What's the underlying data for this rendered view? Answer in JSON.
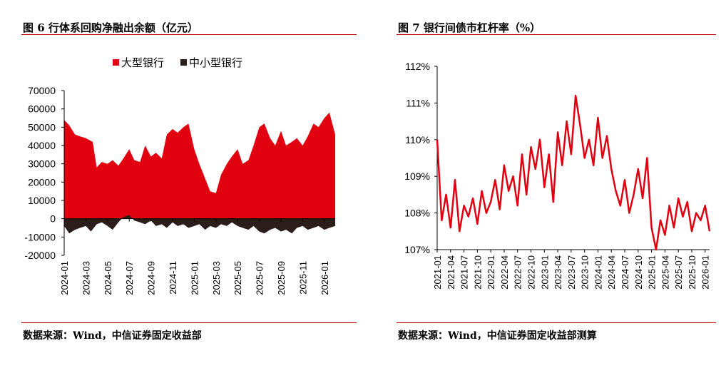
{
  "left_panel": {
    "title": "图 6 行体系回购净融出余额（亿元）",
    "source": "数据来源：Wind，中信证券固定收益部"
  },
  "right_panel": {
    "title": "图 7 银行间债市杠杆率（%）",
    "source": "数据来源：Wind，中信证券固定收益部测算"
  },
  "colors": {
    "accent": "#c00000",
    "red": "#e0000f",
    "dark": "#2b1d1a",
    "line": "#e0000f"
  },
  "chart_data": [
    {
      "type": "area",
      "title": "",
      "ylim": [
        -20000,
        70000
      ],
      "yticks": [
        70000,
        60000,
        50000,
        40000,
        30000,
        20000,
        10000,
        0,
        -10000,
        -20000
      ],
      "x_ticks": [
        "2024-01",
        "2024-03",
        "2024-05",
        "2024-07",
        "2024-09",
        "2024-11",
        "2025-01",
        "2025-03",
        "2025-05",
        "2025-07",
        "2025-09",
        "2025-11",
        "2026-01"
      ],
      "x_start": "2024-01",
      "x_end": "2026-02",
      "legend_position": "top-left",
      "series": [
        {
          "name": "大型银行",
          "color": "#e0000f",
          "x": [
            "2024-01",
            "2024-01-15",
            "2024-02",
            "2024-02-15",
            "2024-03",
            "2024-03-10",
            "2024-03-20",
            "2024-04",
            "2024-04-15",
            "2024-05",
            "2024-05-15",
            "2024-06",
            "2024-06-15",
            "2024-07",
            "2024-07-15",
            "2024-08",
            "2024-08-15",
            "2024-09",
            "2024-09-15",
            "2024-10",
            "2024-10-15",
            "2024-11",
            "2024-11-15",
            "2024-12",
            "2024-12-15",
            "2025-01",
            "2025-01-15",
            "2025-02",
            "2025-02-15",
            "2025-03",
            "2025-03-15",
            "2025-04",
            "2025-04-15",
            "2025-05",
            "2025-05-15",
            "2025-06",
            "2025-06-15",
            "2025-07",
            "2025-07-15",
            "2025-08",
            "2025-08-15",
            "2025-09",
            "2025-09-15",
            "2025-10",
            "2025-10-15",
            "2025-11",
            "2025-11-15",
            "2025-12",
            "2025-12-15",
            "2026-01",
            "2026-01-15",
            "2026-02"
          ],
          "values": [
            54000,
            51000,
            46000,
            45000,
            44000,
            43000,
            42000,
            28000,
            31000,
            30000,
            32000,
            29000,
            33000,
            38000,
            32000,
            31000,
            40000,
            34000,
            36000,
            33000,
            46000,
            49000,
            47000,
            50000,
            52000,
            38000,
            30000,
            22000,
            15000,
            14000,
            24000,
            30000,
            34000,
            38000,
            30000,
            32000,
            40000,
            50000,
            52000,
            44000,
            40000,
            48000,
            40000,
            42000,
            44000,
            40000,
            45000,
            52000,
            50000,
            55000,
            58000,
            46000
          ]
        },
        {
          "name": "中小型银行",
          "color": "#2b1d1a",
          "x": [
            "2024-01",
            "2024-01-15",
            "2024-02",
            "2024-02-15",
            "2024-03",
            "2024-03-15",
            "2024-04",
            "2024-04-15",
            "2024-05",
            "2024-05-15",
            "2024-06",
            "2024-06-15",
            "2024-07",
            "2024-07-15",
            "2024-08",
            "2024-08-15",
            "2024-09",
            "2024-09-15",
            "2024-10",
            "2024-10-15",
            "2024-11",
            "2024-11-15",
            "2024-12",
            "2024-12-15",
            "2025-01",
            "2025-01-15",
            "2025-02",
            "2025-02-15",
            "2025-03",
            "2025-03-15",
            "2025-04",
            "2025-04-15",
            "2025-05",
            "2025-05-15",
            "2025-06",
            "2025-06-15",
            "2025-07",
            "2025-07-15",
            "2025-08",
            "2025-08-15",
            "2025-09",
            "2025-09-15",
            "2025-10",
            "2025-10-15",
            "2025-11",
            "2025-11-15",
            "2025-12",
            "2025-12-15",
            "2026-01",
            "2026-01-15",
            "2026-02"
          ],
          "values": [
            -4000,
            -8000,
            -6000,
            -5000,
            -4000,
            -7000,
            -3000,
            -2000,
            -4000,
            -6000,
            -2000,
            1000,
            2000,
            -1000,
            -2000,
            -3000,
            -1000,
            -4000,
            -3000,
            -5000,
            -2000,
            -4000,
            -3000,
            -5000,
            -4000,
            -3000,
            -6000,
            -4000,
            -5000,
            -3000,
            -4000,
            -2000,
            -4000,
            -5000,
            -6000,
            -4000,
            -7000,
            -8000,
            -6000,
            -5000,
            -7000,
            -6000,
            -8000,
            -5000,
            -4000,
            -6000,
            -5000,
            -4000,
            -6000,
            -5000,
            -4000
          ]
        }
      ]
    },
    {
      "type": "line",
      "title": "",
      "ylim": [
        107,
        112
      ],
      "yticks": [
        "112%",
        "111%",
        "110%",
        "109%",
        "108%",
        "107%"
      ],
      "yvalues": [
        112,
        111,
        110,
        109,
        108,
        107
      ],
      "x_ticks": [
        "2021-01",
        "2021-04",
        "2021-07",
        "2021-10",
        "2022-01",
        "2022-04",
        "2022-07",
        "2022-10",
        "2023-01",
        "2023-04",
        "2023-07",
        "2023-10",
        "2024-01",
        "2024-04",
        "2024-07",
        "2024-10",
        "2025-01",
        "2025-04",
        "2025-07",
        "2025-10",
        "2026-01"
      ],
      "x_start": "2021-01",
      "x_end": "2026-02",
      "series": [
        {
          "color": "#e0000f",
          "x": [
            "2021-01",
            "2021-02",
            "2021-03",
            "2021-04",
            "2021-05",
            "2021-06",
            "2021-07",
            "2021-08",
            "2021-09",
            "2021-10",
            "2021-11",
            "2021-12",
            "2022-01",
            "2022-02",
            "2022-03",
            "2022-04",
            "2022-05",
            "2022-06",
            "2022-07",
            "2022-08",
            "2022-09",
            "2022-10",
            "2022-11",
            "2022-12",
            "2023-01",
            "2023-02",
            "2023-03",
            "2023-04",
            "2023-05",
            "2023-06",
            "2023-07",
            "2023-08",
            "2023-09",
            "2023-10",
            "2023-11",
            "2023-12",
            "2024-01",
            "2024-02",
            "2024-03",
            "2024-04",
            "2024-05",
            "2024-06",
            "2024-07",
            "2024-08",
            "2024-09",
            "2024-10",
            "2024-11",
            "2024-12",
            "2025-01",
            "2025-02",
            "2025-03",
            "2025-04",
            "2025-05",
            "2025-06",
            "2025-07",
            "2025-08",
            "2025-09",
            "2025-10",
            "2025-11",
            "2025-12",
            "2026-01",
            "2026-02"
          ],
          "values": [
            110.0,
            107.8,
            108.5,
            107.6,
            108.9,
            107.5,
            108.2,
            107.9,
            108.4,
            107.7,
            108.6,
            108.0,
            108.3,
            108.9,
            108.1,
            109.3,
            108.6,
            109.0,
            108.2,
            109.6,
            108.5,
            109.8,
            109.2,
            110.0,
            108.7,
            109.6,
            108.3,
            110.2,
            109.3,
            110.5,
            109.6,
            111.2,
            110.4,
            109.5,
            110.0,
            109.3,
            110.6,
            109.5,
            110.1,
            109.2,
            108.6,
            108.2,
            108.9,
            108.0,
            108.5,
            109.2,
            108.4,
            109.5,
            107.6,
            107.0,
            107.8,
            107.4,
            108.2,
            107.6,
            108.4,
            107.9,
            108.3,
            107.5,
            108.0,
            107.8,
            108.2,
            107.5
          ]
        }
      ]
    }
  ]
}
